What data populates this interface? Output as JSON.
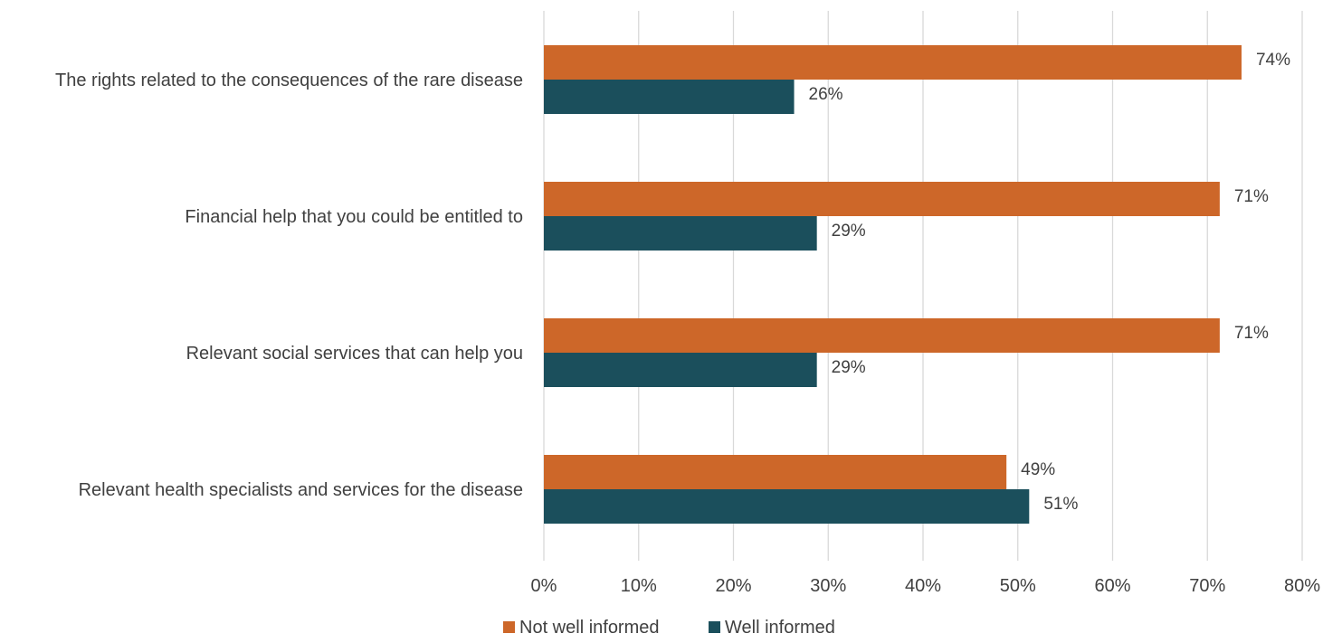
{
  "chart_data": {
    "type": "bar",
    "orientation": "horizontal",
    "categories": [
      "The rights related to the consequences of the rare disease",
      "Financial help that you could be entitled to",
      "Relevant social services that can help you",
      "Relevant health specialists and services for the disease"
    ],
    "series": [
      {
        "name": "Not well informed",
        "color": "#cd6729",
        "values": [
          74,
          71,
          71,
          49
        ],
        "labels": [
          "74%",
          "71%",
          "71%",
          "49%"
        ],
        "plotted": [
          73.6,
          71.3,
          71.3,
          48.8
        ]
      },
      {
        "name": "Well informed",
        "color": "#1b4f5c",
        "values": [
          26,
          29,
          29,
          51
        ],
        "labels": [
          "26%",
          "29%",
          "29%",
          "51%"
        ],
        "plotted": [
          26.4,
          28.8,
          28.8,
          51.2
        ]
      }
    ],
    "xlim": [
      0,
      80
    ],
    "xticks": [
      "0%",
      "10%",
      "20%",
      "30%",
      "40%",
      "50%",
      "60%",
      "70%",
      "80%"
    ],
    "grid": "vertical",
    "legend_position": "bottom",
    "title": "",
    "xlabel": "",
    "ylabel": ""
  }
}
